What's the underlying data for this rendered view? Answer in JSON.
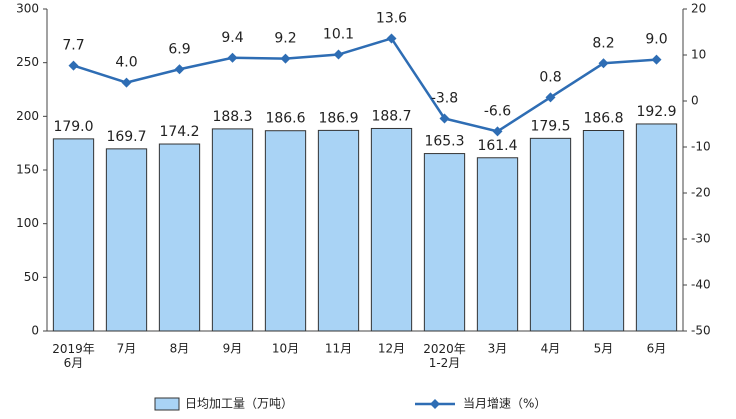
{
  "chart_data": {
    "type": "bar",
    "categories": [
      "2019年\n6月",
      "7月",
      "8月",
      "9月",
      "10月",
      "11月",
      "12月",
      "2020年\n1-2月",
      "3月",
      "4月",
      "5月",
      "6月"
    ],
    "series": [
      {
        "name": "日均加工量（万吨）",
        "type": "bar",
        "color": "#a9d3f5",
        "values": [
          179.0,
          169.7,
          174.2,
          188.3,
          186.6,
          186.9,
          188.7,
          165.3,
          161.4,
          179.5,
          186.8,
          192.9
        ],
        "value_labels": [
          "179.0",
          "169.7",
          "174.2",
          "188.3",
          "186.6",
          "186.9",
          "188.7",
          "165.3",
          "161.4",
          "179.5",
          "186.8",
          "192.9"
        ]
      },
      {
        "name": "当月增速（%）",
        "type": "line",
        "axis": "y2",
        "color": "#2e6db4",
        "values": [
          7.7,
          4.0,
          6.9,
          9.4,
          9.2,
          10.1,
          13.6,
          -3.8,
          -6.6,
          0.8,
          8.2,
          9.0
        ],
        "value_labels": [
          "7.7",
          "4.0",
          "6.9",
          "9.4",
          "9.2",
          "10.1",
          "13.6",
          "-3.8",
          "-6.6",
          "0.8",
          "8.2",
          "9.0"
        ]
      }
    ],
    "ylim": [
      0,
      300
    ],
    "yticks": [
      0,
      50,
      100,
      150,
      200,
      250,
      300
    ],
    "y2lim": [
      -50,
      20
    ],
    "y2ticks": [
      -50,
      -40,
      -30,
      -20,
      -10,
      0,
      10,
      20
    ]
  }
}
